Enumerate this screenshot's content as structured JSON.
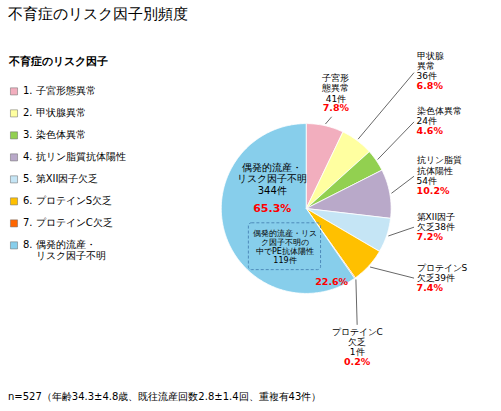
{
  "chart_data": {
    "type": "pie",
    "title": "不育症のリスク因子別頻度",
    "legend_title": "不育症のリスク因子",
    "legend": "left",
    "categories": [
      "1. 子宮形態異常",
      "2. 甲状腺異常",
      "3. 染色体異常",
      "4. 抗リン脂質抗体陽性",
      "5. 第XII因子欠乏",
      "6. プロテインS欠乏",
      "7. プロテインC欠乏",
      "8. 偶発的流産・\n    リスク因子不明"
    ],
    "values": [
      7.8,
      6.8,
      4.6,
      10.2,
      7.2,
      7.4,
      0.2,
      65.3
    ],
    "value_labels": [
      "7.8%",
      "6.8%",
      "4.6%",
      "10.2%",
      "7.2%",
      "7.4%",
      "0.2%",
      "65.3%"
    ],
    "data_labels": true,
    "colors": [
      "#F2AEBE",
      "#FFFFA0",
      "#92D050",
      "#B9A9C9",
      "#C5E5F5",
      "#FFC000",
      "#FF6600",
      "#87CEEB"
    ],
    "slice_labels": [
      "子宮形\n態異常\n41件",
      "甲状腺\n異常\n36件",
      "染色体異常\n24件",
      "抗リン脂質\n抗体陽性\n54件",
      "第XII因子\n欠乏38件",
      "プロテインS\n欠乏39件",
      "プロテインC\n欠乏\n1件",
      "偶発的流産・\nリスク因子不明\n344件"
    ],
    "annotations": [
      "偶発的流産・リス\nク因子不明の\n中でPE抗体陽性\n119件",
      "22.6%"
    ],
    "caption": "n=527（年齢34.3±4.8歳、既往流産回数2.8±1.4回、重複有43件）"
  }
}
